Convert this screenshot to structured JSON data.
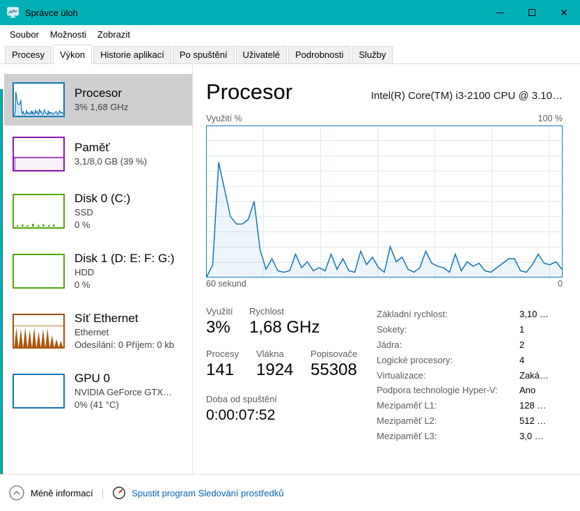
{
  "window": {
    "title": "Správce úloh"
  },
  "colors": {
    "accent": "#00B0B5",
    "cpu": "#1375B5",
    "memory": "#8B12AE",
    "disk": "#4DA60C",
    "network": "#A74F01",
    "gpu": "#1375B5",
    "link": "#0063B1",
    "selected_bg": "#CDCFD0",
    "grid": "#DCE9F2"
  },
  "titlebar": {
    "minimize_glyph": "—",
    "maximize_glyph": "□",
    "close_glyph": "✕"
  },
  "menu": {
    "items": [
      "Soubor",
      "Možnosti",
      "Zobrazit"
    ]
  },
  "tabs": [
    {
      "label": "Procesy",
      "active": false
    },
    {
      "label": "Výkon",
      "active": true
    },
    {
      "label": "Historie aplikací",
      "active": false
    },
    {
      "label": "Po spuštění",
      "active": false
    },
    {
      "label": "Uživatelé",
      "active": false
    },
    {
      "label": "Podrobnosti",
      "active": false
    },
    {
      "label": "Služby",
      "active": false
    }
  ],
  "sidebar": [
    {
      "id": "cpu",
      "title": "Procesor",
      "lines": [
        "3% 1,68 GHz"
      ],
      "selected": true,
      "thumb": "cpu-line",
      "color": "#1375B5"
    },
    {
      "id": "memory",
      "title": "Paměť",
      "lines": [
        "3,1/8,0 GB (39 %)"
      ],
      "selected": false,
      "thumb": "memory-fill",
      "color": "#8B12AE",
      "fill_percent": 39
    },
    {
      "id": "disk0",
      "title": "Disk 0 (C:)",
      "lines": [
        "SSD",
        "0 %"
      ],
      "selected": false,
      "thumb": "disk-ticks",
      "color": "#4DA60C"
    },
    {
      "id": "disk1",
      "title": "Disk 1 (D: E: F: G:)",
      "lines": [
        "HDD",
        "0 %"
      ],
      "selected": false,
      "thumb": "empty",
      "color": "#4DA60C"
    },
    {
      "id": "ethernet",
      "title": "Síť Ethernet",
      "lines": [
        "Ethernet",
        "Odesílání: 0 Příjem: 0 kb"
      ],
      "selected": false,
      "thumb": "net-spikes",
      "color": "#A74F01"
    },
    {
      "id": "gpu",
      "title": "GPU 0",
      "lines": [
        "NVIDIA GeForce GTX…",
        "0% (41 °C)"
      ],
      "selected": false,
      "thumb": "empty",
      "color": "#1375B5"
    }
  ],
  "main": {
    "title": "Procesor",
    "subtitle": "Intel(R) Core(TM) i3-2100 CPU @ 3.10…",
    "y_top_label": "Využití %",
    "y_max_label": "100 %",
    "x_left_label": "60 sekund",
    "x_right_label": "0"
  },
  "stats": {
    "usage_label": "Využití",
    "usage_value": "3%",
    "speed_label": "Rychlost",
    "speed_value": "1,68 GHz",
    "processes_label": "Procesy",
    "processes_value": "141",
    "threads_label": "Vlákna",
    "threads_value": "1924",
    "handles_label": "Popisovače",
    "handles_value": "55308",
    "uptime_label": "Doba od spuštění",
    "uptime_value": "0:00:07:52"
  },
  "details": [
    {
      "label": "Základní rychlost:",
      "value": "3,10 …"
    },
    {
      "label": "Sokety:",
      "value": "1"
    },
    {
      "label": "Jádra:",
      "value": "2"
    },
    {
      "label": "Logické procesory:",
      "value": "4"
    },
    {
      "label": "Virtualizace:",
      "value": "Zaká…"
    },
    {
      "label": "Podpora technologie Hyper-V:",
      "value": "Ano"
    },
    {
      "label": "Mezipaměť L1:",
      "value": "128 …"
    },
    {
      "label": "Mezipaměť L2:",
      "value": "512 …"
    },
    {
      "label": "Mezipaměť L3:",
      "value": "3,0 …"
    }
  ],
  "footer": {
    "less_info_label": "Méně informací",
    "divider": "|",
    "resmon_label": "Spustit program Sledování prostředků"
  },
  "chart_data": {
    "type": "area",
    "title": "Využití %",
    "ylim": [
      0,
      100
    ],
    "x_range_seconds": 60,
    "x_left_label": "60 sekund",
    "x_right_label": "0",
    "values_percent": [
      0,
      8,
      76,
      58,
      40,
      35,
      35,
      38,
      50,
      18,
      5,
      12,
      4,
      3,
      4,
      15,
      6,
      10,
      4,
      6,
      4,
      15,
      5,
      12,
      4,
      3,
      17,
      8,
      13,
      6,
      3,
      20,
      10,
      13,
      5,
      3,
      6,
      17,
      9,
      7,
      6,
      3,
      15,
      4,
      10,
      7,
      9,
      4,
      3,
      6,
      9,
      12,
      12,
      4,
      3,
      8,
      15,
      9,
      8,
      10,
      5
    ],
    "net_thumb_spikes_percent": [
      62,
      58,
      63,
      55,
      62,
      50,
      58,
      60,
      38,
      25,
      20
    ],
    "disk_thumb_ticks": [
      {
        "x": 6,
        "h": 2
      },
      {
        "x": 13,
        "h": 3
      },
      {
        "x": 20,
        "h": 2
      },
      {
        "x": 28,
        "h": 4
      },
      {
        "x": 36,
        "h": 2
      },
      {
        "x": 43,
        "h": 3
      },
      {
        "x": 51,
        "h": 2
      },
      {
        "x": 58,
        "h": 3
      }
    ]
  }
}
